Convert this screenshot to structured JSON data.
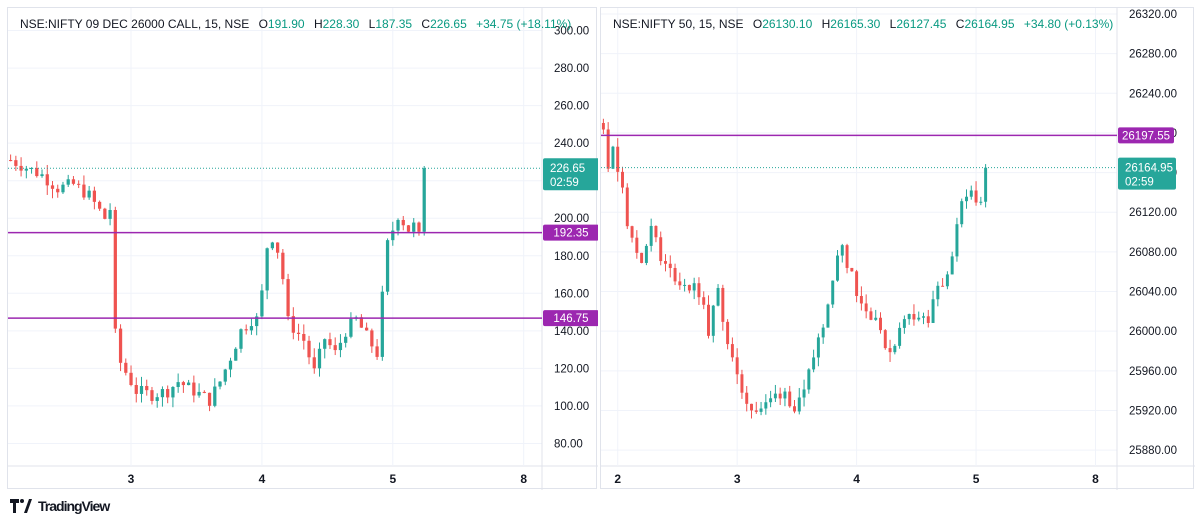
{
  "charts": [
    {
      "legend": {
        "symbol": "NSE:NIFTY 09 DEC 26000 CALL, 15, NSE",
        "o_label": "O",
        "o": "191.90",
        "h_label": "H",
        "h": "228.30",
        "l_label": "L",
        "l": "187.35",
        "c_label": "C",
        "c": "226.65",
        "change": "+34.75 (+18.11%)"
      },
      "price_badge": {
        "price": "226.65",
        "timer": "02:59"
      },
      "levels": [
        {
          "label": "192.35",
          "value": 192.35
        },
        {
          "label": "146.75",
          "value": 146.75
        }
      ]
    },
    {
      "legend": {
        "symbol": "NSE:NIFTY 50, 15, NSE",
        "o_label": "O",
        "o": "26130.10",
        "h_label": "H",
        "h": "26165.30",
        "l_label": "L",
        "l": "26127.45",
        "c_label": "C",
        "c": "26164.95",
        "change": "+34.80 (+0.13%)"
      },
      "price_badge": {
        "price": "26164.95",
        "timer": "02:59"
      },
      "levels": [
        {
          "label": "26197.55",
          "value": 26197.55
        }
      ]
    }
  ],
  "footer": {
    "brand": "TradingView"
  },
  "colors": {
    "up": "#26a69a",
    "down": "#ef5350",
    "level": "#9c27b0",
    "grid": "#f0f3fa"
  },
  "chart_data": [
    {
      "type": "candlestick",
      "title": "NSE:NIFTY 09 DEC 26000 CALL, 15, NSE",
      "ylim": [
        68,
        312
      ],
      "y_ticks": [
        "80.00",
        "100.00",
        "120.00",
        "140.00",
        "160.00",
        "180.00",
        "200.00",
        "220.00",
        "240.00",
        "260.00",
        "280.00",
        "300.00"
      ],
      "x_ticks": [
        {
          "label": "3",
          "index": 23
        },
        {
          "label": "4",
          "index": 48
        },
        {
          "label": "5",
          "index": 73
        },
        {
          "label": "8",
          "index": 98
        }
      ],
      "horizontal_lines": [
        192.35,
        146.75
      ],
      "last_price": 226.65,
      "anchors": [
        [
          0,
          231
        ],
        [
          3,
          227
        ],
        [
          6,
          223
        ],
        [
          9,
          216
        ],
        [
          12,
          218
        ],
        [
          15,
          212
        ],
        [
          18,
          200
        ],
        [
          19,
          205
        ],
        [
          19.5,
          143
        ],
        [
          20,
          138
        ],
        [
          21,
          123
        ],
        [
          24,
          108
        ],
        [
          27,
          106
        ],
        [
          30,
          108
        ],
        [
          32,
          113
        ],
        [
          35,
          108
        ],
        [
          38,
          103
        ],
        [
          40,
          113
        ],
        [
          42,
          126
        ],
        [
          44,
          140
        ],
        [
          46,
          146
        ],
        [
          47,
          146
        ],
        [
          48,
          160
        ],
        [
          49,
          185
        ],
        [
          50,
          190
        ],
        [
          51,
          183
        ],
        [
          52,
          168
        ],
        [
          53,
          145
        ],
        [
          56,
          135
        ],
        [
          58,
          118
        ],
        [
          60,
          136
        ],
        [
          62,
          128
        ],
        [
          64,
          140
        ],
        [
          66,
          146
        ],
        [
          70,
          128
        ],
        [
          71,
          158
        ],
        [
          72,
          186
        ],
        [
          74,
          202
        ],
        [
          76,
          194
        ],
        [
          77,
          196
        ],
        [
          78,
          190
        ],
        [
          79,
          226
        ]
      ],
      "candles": []
    },
    {
      "type": "candlestick",
      "title": "NSE:NIFTY 50, 15, NSE",
      "ylim": [
        25864,
        26326
      ],
      "y_ticks": [
        "25880.00",
        "25920.00",
        "25960.00",
        "26000.00",
        "26040.00",
        "26080.00",
        "26120.00",
        "26160.00",
        "26200.00",
        "26240.00",
        "26280.00",
        "26320.00"
      ],
      "x_ticks": [
        {
          "label": "2",
          "index": 3
        },
        {
          "label": "3",
          "index": 28
        },
        {
          "label": "4",
          "index": 53
        },
        {
          "label": "5",
          "index": 78
        },
        {
          "label": "8",
          "index": 103
        }
      ],
      "horizontal_lines": [
        26197.55
      ],
      "last_price": 26164.95,
      "anchors": [
        [
          0,
          26210
        ],
        [
          1,
          26170
        ],
        [
          2,
          26180
        ],
        [
          4,
          26150
        ],
        [
          5,
          26110
        ],
        [
          6,
          26090
        ],
        [
          8,
          26070
        ],
        [
          10,
          26110
        ],
        [
          12,
          26070
        ],
        [
          14,
          26060
        ],
        [
          16,
          26050
        ],
        [
          18,
          26045
        ],
        [
          20,
          26040
        ],
        [
          22,
          26000
        ],
        [
          24,
          26040
        ],
        [
          26,
          25990
        ],
        [
          28,
          25950
        ],
        [
          30,
          25930
        ],
        [
          32,
          25920
        ],
        [
          34,
          25925
        ],
        [
          36,
          25935
        ],
        [
          38,
          25940
        ],
        [
          40,
          25920
        ],
        [
          42,
          25935
        ],
        [
          44,
          25975
        ],
        [
          46,
          26010
        ],
        [
          48,
          26055
        ],
        [
          50,
          26090
        ],
        [
          51,
          26070
        ],
        [
          52,
          26060
        ],
        [
          53,
          26040
        ],
        [
          55,
          26020
        ],
        [
          57,
          26015
        ],
        [
          58,
          25995
        ],
        [
          60,
          25980
        ],
        [
          62,
          26000
        ],
        [
          64,
          26020
        ],
        [
          66,
          26015
        ],
        [
          68,
          26010
        ],
        [
          70,
          26045
        ],
        [
          71,
          26040
        ],
        [
          72,
          26060
        ],
        [
          73,
          26080
        ],
        [
          75,
          26125
        ],
        [
          77,
          26140
        ],
        [
          79,
          26130
        ],
        [
          80,
          26165
        ]
      ],
      "candles": []
    }
  ]
}
